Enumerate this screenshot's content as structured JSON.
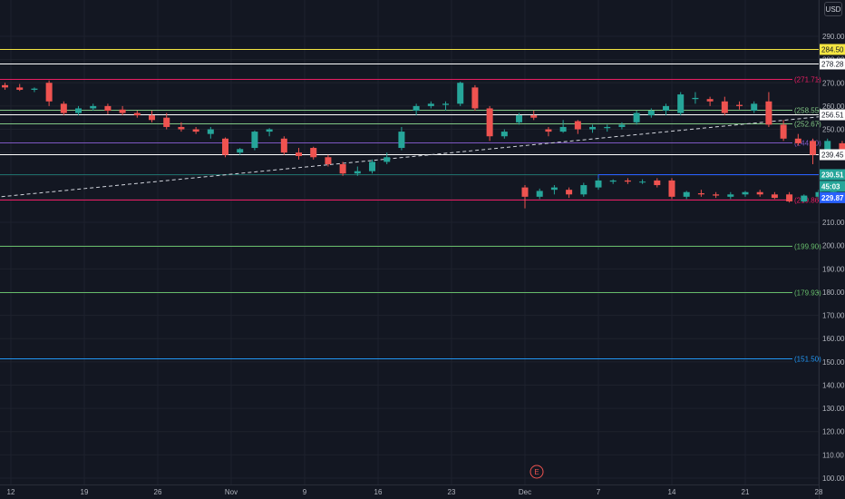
{
  "currency": "USD",
  "countdown": "45:03",
  "earnings_marker": "E",
  "colors": {
    "background": "#131722",
    "up": "#26a69a",
    "down": "#ef5350",
    "grid": "#1e222d",
    "axis_text": "#b2b5be"
  },
  "chart_data": {
    "type": "candlestick",
    "y_axis": {
      "min": 100,
      "max": 290,
      "ticks": [
        290,
        280,
        270,
        260,
        250,
        240,
        230,
        220,
        210,
        200,
        190,
        180,
        170,
        160,
        150,
        140,
        130,
        120,
        110,
        100
      ],
      "tick_labels": [
        "290.00",
        "280.00",
        "270.00",
        "260.00",
        "250.00",
        "240.00",
        "230.00",
        "220.00",
        "210.00",
        "200.00",
        "190.00",
        "180.00",
        "170.00",
        "160.00",
        "150.00",
        "140.00",
        "130.00",
        "120.00",
        "110.00",
        "100.00"
      ]
    },
    "x_axis": {
      "tick_labels": [
        "12",
        "19",
        "26",
        "Nov",
        "9",
        "16",
        "23",
        "Dec",
        "7",
        "14",
        "21",
        "28"
      ],
      "tick_sessions": [
        0,
        5,
        10,
        15,
        20,
        25,
        30,
        35,
        40,
        45,
        50,
        55
      ]
    },
    "candles": [
      {
        "s": -1.4,
        "o": 268.0,
        "h": 271.0,
        "l": 266.0,
        "c": 269.0
      },
      {
        "s": -0.4,
        "o": 269.0,
        "h": 270.0,
        "l": 267.0,
        "c": 268.0
      },
      {
        "s": 0.6,
        "o": 268.0,
        "h": 269.5,
        "l": 266.5,
        "c": 267.0
      },
      {
        "s": 1.6,
        "o": 267.0,
        "h": 268.0,
        "l": 266.0,
        "c": 267.5
      },
      {
        "s": 2.6,
        "o": 270.0,
        "h": 271.0,
        "l": 260.0,
        "c": 262.0
      },
      {
        "s": 3.6,
        "o": 261.0,
        "h": 262.0,
        "l": 256.0,
        "c": 257.0
      },
      {
        "s": 4.6,
        "o": 257.0,
        "h": 260.0,
        "l": 256.0,
        "c": 259.0
      },
      {
        "s": 5.6,
        "o": 259.0,
        "h": 261.0,
        "l": 258.0,
        "c": 260.0
      },
      {
        "s": 6.6,
        "o": 260.0,
        "h": 261.0,
        "l": 256.5,
        "c": 258.0
      },
      {
        "s": 7.6,
        "o": 258.5,
        "h": 260.0,
        "l": 256.0,
        "c": 257.0
      },
      {
        "s": 8.6,
        "o": 257.0,
        "h": 258.0,
        "l": 255.0,
        "c": 256.0
      },
      {
        "s": 9.6,
        "o": 256.0,
        "h": 258.0,
        "l": 253.0,
        "c": 254.0
      },
      {
        "s": 10.6,
        "o": 255.0,
        "h": 257.0,
        "l": 250.0,
        "c": 251.0
      },
      {
        "s": 11.6,
        "o": 251.0,
        "h": 253.0,
        "l": 249.0,
        "c": 250.0
      },
      {
        "s": 12.6,
        "o": 250.0,
        "h": 251.0,
        "l": 248.0,
        "c": 249.0
      },
      {
        "s": 13.6,
        "o": 248.0,
        "h": 251.0,
        "l": 246.0,
        "c": 250.0
      },
      {
        "s": 14.6,
        "o": 246.0,
        "h": 246.5,
        "l": 238.0,
        "c": 239.0
      },
      {
        "s": 15.6,
        "o": 240.0,
        "h": 242.0,
        "l": 239.0,
        "c": 241.5
      },
      {
        "s": 16.6,
        "o": 242.0,
        "h": 249.5,
        "l": 241.0,
        "c": 249.0
      },
      {
        "s": 17.6,
        "o": 249.0,
        "h": 250.5,
        "l": 247.0,
        "c": 250.0
      },
      {
        "s": 18.6,
        "o": 246.0,
        "h": 247.0,
        "l": 239.0,
        "c": 240.0
      },
      {
        "s": 19.6,
        "o": 240.0,
        "h": 242.0,
        "l": 237.0,
        "c": 238.5
      },
      {
        "s": 20.6,
        "o": 242.0,
        "h": 242.5,
        "l": 237.0,
        "c": 238.0
      },
      {
        "s": 21.6,
        "o": 238.0,
        "h": 239.0,
        "l": 234.0,
        "c": 235.0
      },
      {
        "s": 22.6,
        "o": 235.0,
        "h": 236.0,
        "l": 230.0,
        "c": 231.0
      },
      {
        "s": 23.6,
        "o": 231.0,
        "h": 234.0,
        "l": 230.0,
        "c": 232.0
      },
      {
        "s": 24.6,
        "o": 232.0,
        "h": 237.0,
        "l": 231.0,
        "c": 236.0
      },
      {
        "s": 25.6,
        "o": 236.0,
        "h": 240.0,
        "l": 235.0,
        "c": 238.0
      },
      {
        "s": 26.6,
        "o": 242.0,
        "h": 251.0,
        "l": 241.0,
        "c": 249.0
      },
      {
        "s": 27.6,
        "o": 258.0,
        "h": 261.0,
        "l": 256.0,
        "c": 260.0
      },
      {
        "s": 28.6,
        "o": 260.0,
        "h": 262.0,
        "l": 259.0,
        "c": 261.0
      },
      {
        "s": 29.6,
        "o": 260.5,
        "h": 262.0,
        "l": 258.0,
        "c": 261.0
      },
      {
        "s": 30.6,
        "o": 261.0,
        "h": 270.5,
        "l": 260.0,
        "c": 270.0
      },
      {
        "s": 31.6,
        "o": 268.0,
        "h": 269.0,
        "l": 258.0,
        "c": 259.0
      },
      {
        "s": 32.6,
        "o": 259.0,
        "h": 260.0,
        "l": 245.0,
        "c": 247.0
      },
      {
        "s": 33.6,
        "o": 247.0,
        "h": 250.0,
        "l": 246.0,
        "c": 249.0
      },
      {
        "s": 34.6,
        "o": 253.0,
        "h": 257.0,
        "l": 252.0,
        "c": 256.0
      },
      {
        "s": 35.6,
        "o": 256.0,
        "h": 258.0,
        "l": 254.0,
        "c": 255.0
      },
      {
        "s": 36.6,
        "o": 250.0,
        "h": 251.0,
        "l": 247.0,
        "c": 249.0
      },
      {
        "s": 37.6,
        "o": 249.0,
        "h": 254.0,
        "l": 248.5,
        "c": 251.0
      },
      {
        "s": 38.6,
        "o": 253.5,
        "h": 254.0,
        "l": 248.0,
        "c": 250.0
      },
      {
        "s": 39.6,
        "o": 250.0,
        "h": 252.0,
        "l": 248.5,
        "c": 251.0
      },
      {
        "s": 40.6,
        "o": 250.5,
        "h": 252.0,
        "l": 249.0,
        "c": 251.0
      },
      {
        "s": 41.6,
        "o": 251.0,
        "h": 253.0,
        "l": 250.0,
        "c": 252.0
      },
      {
        "s": 42.6,
        "o": 253.0,
        "h": 258.0,
        "l": 252.0,
        "c": 257.0
      },
      {
        "s": 43.6,
        "o": 256.0,
        "h": 259.0,
        "l": 255.0,
        "c": 258.0
      },
      {
        "s": 44.6,
        "o": 258.0,
        "h": 261.0,
        "l": 256.0,
        "c": 260.0
      },
      {
        "s": 45.6,
        "o": 257.0,
        "h": 266.0,
        "l": 256.0,
        "c": 265.0
      },
      {
        "s": 46.6,
        "o": 263.0,
        "h": 266.0,
        "l": 261.0,
        "c": 263.5
      },
      {
        "s": 47.6,
        "o": 263.0,
        "h": 264.0,
        "l": 260.0,
        "c": 262.0
      },
      {
        "s": 48.6,
        "o": 262.0,
        "h": 264.0,
        "l": 256.0,
        "c": 257.0
      },
      {
        "s": 49.6,
        "o": 260.5,
        "h": 262.0,
        "l": 258.5,
        "c": 260.0
      },
      {
        "s": 50.6,
        "o": 258.0,
        "h": 262.0,
        "l": 257.0,
        "c": 261.0
      },
      {
        "s": 51.6,
        "o": 262.0,
        "h": 266.0,
        "l": 251.0,
        "c": 252.0
      },
      {
        "s": 52.6,
        "o": 252.0,
        "h": 254.0,
        "l": 245.0,
        "c": 246.0
      },
      {
        "s": 53.6,
        "o": 246.0,
        "h": 248.0,
        "l": 243.0,
        "c": 244.0
      },
      {
        "s": 54.6,
        "o": 245.0,
        "h": 246.0,
        "l": 235.0,
        "c": 239.0
      },
      {
        "s": 55.6,
        "o": 239.0,
        "h": 246.0,
        "l": 238.0,
        "c": 245.0
      },
      {
        "s": 56.6,
        "o": 244.0,
        "h": 245.0,
        "l": 240.0,
        "c": 241.0
      },
      {
        "s": 57.6,
        "o": 241.5,
        "h": 242.0,
        "l": 239.5,
        "c": 240.5
      },
      {
        "s": 35.0,
        "o": 225.0,
        "h": 226.0,
        "l": 216.0,
        "c": 221.0
      },
      {
        "s": 36.0,
        "o": 221.0,
        "h": 224.5,
        "l": 220.0,
        "c": 223.5
      },
      {
        "s": 37.0,
        "o": 224.0,
        "h": 226.0,
        "l": 222.0,
        "c": 225.0
      },
      {
        "s": 38.0,
        "o": 224.0,
        "h": 225.0,
        "l": 220.5,
        "c": 222.0
      },
      {
        "s": 39.0,
        "o": 222.0,
        "h": 227.0,
        "l": 221.0,
        "c": 226.0
      },
      {
        "s": 40.0,
        "o": 225.0,
        "h": 229.0,
        "l": 224.0,
        "c": 228.0
      },
      {
        "s": 41.0,
        "o": 227.5,
        "h": 228.5,
        "l": 226.5,
        "c": 228.0
      },
      {
        "s": 42.0,
        "o": 228.0,
        "h": 229.0,
        "l": 226.5,
        "c": 227.5
      },
      {
        "s": 43.0,
        "o": 227.5,
        "h": 228.5,
        "l": 226.5,
        "c": 227.5
      },
      {
        "s": 44.0,
        "o": 228.0,
        "h": 229.0,
        "l": 225.0,
        "c": 226.0
      },
      {
        "s": 45.0,
        "o": 228.0,
        "h": 229.0,
        "l": 220.0,
        "c": 221.0
      },
      {
        "s": 46.0,
        "o": 221.0,
        "h": 223.5,
        "l": 220.0,
        "c": 223.0
      },
      {
        "s": 47.0,
        "o": 222.5,
        "h": 224.0,
        "l": 221.0,
        "c": 222.0
      },
      {
        "s": 48.0,
        "o": 222.0,
        "h": 223.0,
        "l": 220.5,
        "c": 221.5
      },
      {
        "s": 49.0,
        "o": 221.0,
        "h": 223.0,
        "l": 220.0,
        "c": 222.0
      },
      {
        "s": 50.0,
        "o": 222.0,
        "h": 223.5,
        "l": 221.0,
        "c": 223.0
      },
      {
        "s": 51.0,
        "o": 223.0,
        "h": 224.0,
        "l": 221.0,
        "c": 222.0
      },
      {
        "s": 52.0,
        "o": 222.0,
        "h": 223.0,
        "l": 220.0,
        "c": 220.5
      },
      {
        "s": 53.0,
        "o": 222.0,
        "h": 223.0,
        "l": 218.5,
        "c": 219.0
      },
      {
        "s": 54.0,
        "o": 219.0,
        "h": 222.0,
        "l": 218.5,
        "c": 221.5
      },
      {
        "s": 55.0,
        "o": 221.0,
        "h": 224.0,
        "l": 220.0,
        "c": 223.0
      },
      {
        "s": 56.0,
        "o": 223.0,
        "h": 224.0,
        "l": 222.5,
        "c": 223.5
      },
      {
        "s": 57.0,
        "o": 223.5,
        "h": 226.0,
        "l": 222.5,
        "c": 224.5
      },
      {
        "s": 58.0,
        "o": 224.0,
        "h": 227.0,
        "l": 223.0,
        "c": 226.0
      },
      {
        "s": 59.0,
        "o": 225.0,
        "h": 227.0,
        "l": 224.0,
        "c": 226.0
      },
      {
        "s": 60.0,
        "o": 226.0,
        "h": 227.0,
        "l": 224.5,
        "c": 225.5
      },
      {
        "s": 61.0,
        "o": 226.0,
        "h": 228.0,
        "l": 225.0,
        "c": 227.0
      },
      {
        "s": 62.0,
        "o": 227.0,
        "h": 228.0,
        "l": 225.5,
        "c": 226.0
      },
      {
        "s": 63.0,
        "o": 226.0,
        "h": 231.0,
        "l": 225.5,
        "c": 230.5
      }
    ],
    "horizontal_levels": [
      {
        "value": 284.5,
        "label": "284.50",
        "color": "#f5e642",
        "boxed_tag": true
      },
      {
        "value": 278.28,
        "label": "278.28",
        "color": "#ffffff",
        "boxed_tag": true
      },
      {
        "value": 271.71,
        "label": "271.71",
        "color": "#e91e63",
        "boxed_tag": false
      },
      {
        "value": 258.55,
        "label": "258.55",
        "color": "#81c784",
        "boxed_tag": false
      },
      {
        "value": 256.51,
        "label": "256.51",
        "color": "#ffffff",
        "boxed_tag": true
      },
      {
        "value": 252.67,
        "label": "252.67",
        "color": "#81c784",
        "boxed_tag": false
      },
      {
        "value": 244.5,
        "label": "244.50",
        "color": "#7e57c2",
        "boxed_tag": false
      },
      {
        "value": 239.45,
        "label": "239.45",
        "color": "#ffffff",
        "boxed_tag": true
      },
      {
        "value": 219.86,
        "label": "219.86",
        "color": "#e91e63",
        "boxed_tag": false
      },
      {
        "value": 199.9,
        "label": "199.90",
        "color": "#66bb6a",
        "boxed_tag": false
      },
      {
        "value": 179.93,
        "label": "179.93",
        "color": "#66bb6a",
        "boxed_tag": false
      },
      {
        "value": 151.5,
        "label": "151.50",
        "color": "#2196f3",
        "boxed_tag": false
      }
    ],
    "trendline": {
      "from": {
        "s": -1.5,
        "v": 220.5
      },
      "to": {
        "s": 69.0,
        "v": 264.0
      },
      "style": "dashed",
      "color": "#d1d4dc"
    },
    "current_price_line": {
      "value": 230.51,
      "color": "#26a69a"
    },
    "price_tags": [
      {
        "value": 230.51,
        "label": "230.51",
        "color": "#26a69a"
      },
      {
        "value": 225.5,
        "label": "45:03",
        "color": "#26a69a"
      },
      {
        "value": 220.6,
        "label": "229.87",
        "color": "#2962ff"
      }
    ],
    "range_marker": {
      "from_s": 40.0,
      "to_s": 63.5,
      "value": 230.51,
      "color": "#2962ff"
    }
  }
}
